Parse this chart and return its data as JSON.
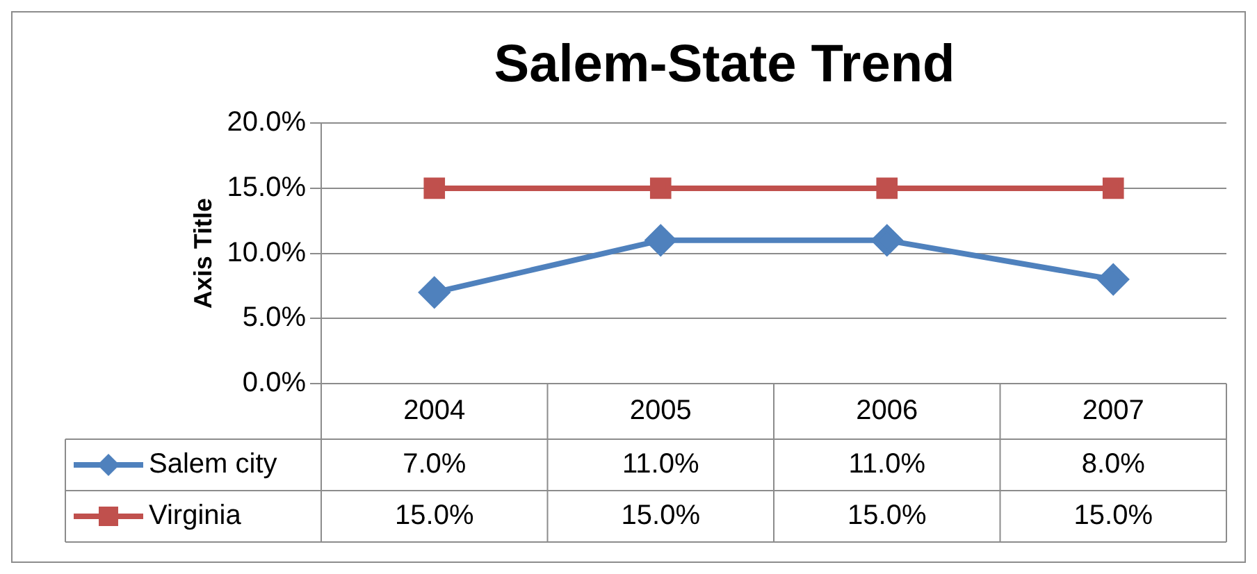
{
  "chart_data": {
    "type": "line",
    "title": "Salem-State Trend",
    "ylabel": "Axis Title",
    "categories": [
      "2004",
      "2005",
      "2006",
      "2007"
    ],
    "series": [
      {
        "name": "Salem city",
        "color": "#4f81bd",
        "marker": "diamond",
        "values": [
          7,
          11,
          11,
          8
        ],
        "value_labels": [
          "7.0%",
          "11.0%",
          "11.0%",
          "8.0%"
        ]
      },
      {
        "name": "Virginia",
        "color": "#c0504d",
        "marker": "square",
        "values": [
          15,
          15,
          15,
          15
        ],
        "value_labels": [
          "15.0%",
          "15.0%",
          "15.0%",
          "15.0%"
        ]
      }
    ],
    "ylim": [
      0,
      20
    ],
    "yticks": [
      {
        "value": 0,
        "label": "0.0%"
      },
      {
        "value": 5,
        "label": "5.0%"
      },
      {
        "value": 10,
        "label": "10.0%"
      },
      {
        "value": 15,
        "label": "15.0%"
      },
      {
        "value": 20,
        "label": "20.0%"
      }
    ],
    "grid": "y",
    "legend": "bottom",
    "line_style": "solid"
  }
}
